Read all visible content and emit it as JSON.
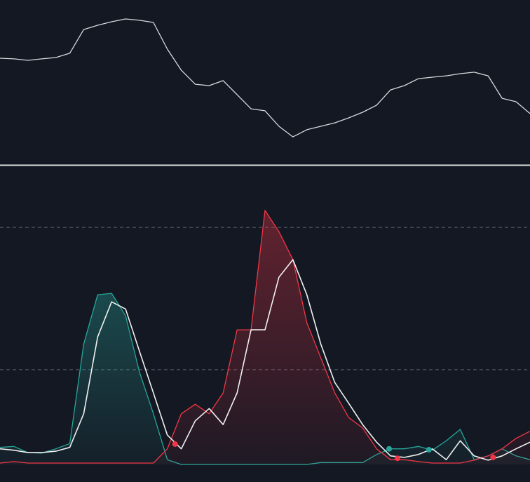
{
  "chart_data": [
    {
      "type": "line",
      "series": [
        {
          "color": "#d8d9dc",
          "values": [
            64.7,
            64.3,
            63.4,
            64.3,
            65.1,
            67.7,
            82.1,
            84.7,
            86.8,
            88.5,
            87.7,
            86.4,
            70.2,
            57.4,
            48.9,
            48.1,
            51.1,
            42.6,
            34.0,
            32.8,
            23.4,
            17.0,
            21.3,
            23.4,
            25.5,
            28.5,
            31.9,
            36.2,
            45.5,
            48.1,
            52.3,
            53.2,
            54.0,
            55.3,
            56.2,
            54.0,
            40.4,
            38.3,
            31.1
          ]
        }
      ],
      "ylim": [
        0,
        100
      ]
    },
    {
      "type": "line",
      "series": [
        {
          "color": "#26a69a",
          "fill": true,
          "values": [
            3.6,
            3.8,
            2.5,
            2.4,
            3.3,
            4.4,
            25.4,
            35.8,
            36.1,
            31.4,
            19.5,
            10.7,
            1.0,
            0,
            0,
            0,
            0,
            0,
            0,
            0,
            0,
            0,
            0,
            0.4,
            0.4,
            0.4,
            0.4,
            2.1,
            3.3,
            3.3,
            3.8,
            3.0,
            5.0,
            7.4,
            1.0,
            1.8,
            3.3,
            1.8,
            1.0
          ]
        },
        {
          "color": "#f23645",
          "fill": true,
          "values": [
            0.3,
            0.6,
            0.3,
            0.3,
            0.3,
            0.3,
            0.3,
            0.3,
            0.3,
            0.3,
            0.3,
            0.3,
            3.3,
            10.7,
            12.7,
            10.7,
            15.1,
            28.4,
            28.4,
            53.6,
            49.1,
            43.2,
            29.9,
            22.5,
            15.1,
            9.9,
            7.7,
            3.3,
            1.0,
            1.0,
            0.6,
            0.3,
            0.3,
            0.3,
            0.9,
            1.8,
            3.3,
            5.5,
            7.0
          ]
        },
        {
          "color": "#f0f0f0",
          "fill": false,
          "values": [
            3.3,
            3.0,
            2.5,
            2.5,
            2.8,
            3.6,
            10.7,
            26.9,
            34.3,
            32.8,
            23.9,
            15.1,
            6.2,
            3.3,
            9.2,
            11.8,
            8.4,
            15.1,
            28.4,
            28.4,
            39.5,
            43.2,
            35.8,
            25.4,
            17.3,
            12.9,
            8.4,
            4.7,
            1.8,
            1.5,
            2.1,
            3.3,
            1.0,
            5.0,
            1.8,
            0.9,
            1.8,
            3.3,
            4.7
          ]
        }
      ],
      "signals": [
        {
          "x": 12.55,
          "value": 4.3,
          "color": "#f23645"
        },
        {
          "x": 27.9,
          "value": 3.3,
          "color": "#26a69a"
        },
        {
          "x": 28.5,
          "value": 1.3,
          "color": "#f23645"
        },
        {
          "x": 30.75,
          "value": 3.1,
          "color": "#26a69a"
        },
        {
          "x": 35.35,
          "value": 1.5,
          "color": "#f23645"
        }
      ],
      "levels": [
        20,
        50
      ],
      "ylim": [
        -3.7,
        62.9
      ]
    }
  ]
}
